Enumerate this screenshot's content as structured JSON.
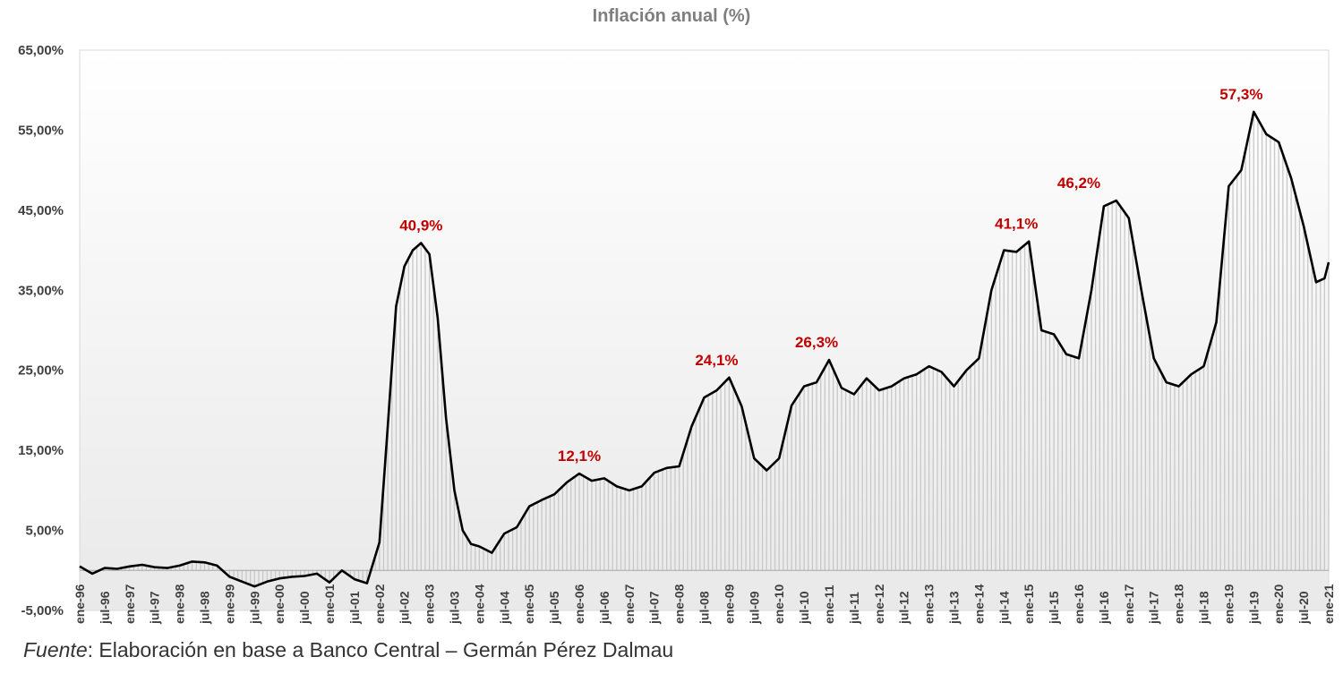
{
  "source": {
    "label": "Fuente",
    "text": ": Elaboración en base a Banco Central – Germán Pérez Dalmau"
  },
  "chart_data": {
    "type": "line",
    "title": "Inflación anual (%)",
    "xlabel": "",
    "ylabel": "",
    "ylim": [
      -5,
      65
    ],
    "yticks": [
      "-5,00%",
      "5,00%",
      "15,00%",
      "25,00%",
      "35,00%",
      "45,00%",
      "55,00%",
      "65,00%"
    ],
    "xticks": [
      "ene-96",
      "jul-96",
      "ene-97",
      "jul-97",
      "ene-98",
      "jul-98",
      "ene-99",
      "jul-99",
      "ene-00",
      "jul-00",
      "ene-01",
      "jul-01",
      "ene-02",
      "jul-02",
      "ene-03",
      "jul-03",
      "ene-04",
      "jul-04",
      "ene-05",
      "jul-05",
      "ene-06",
      "jul-06",
      "ene-07",
      "jul-07",
      "ene-08",
      "jul-08",
      "ene-09",
      "jul-09",
      "ene-10",
      "jul-10",
      "ene-11",
      "jul-11",
      "ene-12",
      "jul-12",
      "ene-13",
      "jul-13",
      "ene-14",
      "jul-14",
      "ene-15",
      "jul-15",
      "ene-16",
      "jul-16",
      "ene-17",
      "jul-17",
      "ene-18",
      "jul-18",
      "ene-19",
      "jul-19",
      "ene-20",
      "jul-20",
      "ene-21"
    ],
    "grid": false,
    "fill_under_line": true,
    "line_color": "#000000",
    "annotation_color": "#c00000",
    "series": [
      {
        "x": [
          "ene-96",
          "abr-96",
          "jul-96",
          "oct-96",
          "ene-97",
          "abr-97",
          "jul-97",
          "oct-97",
          "ene-98",
          "abr-98",
          "jul-98",
          "oct-98",
          "ene-99",
          "abr-99",
          "jul-99",
          "oct-99",
          "ene-00",
          "abr-00",
          "jul-00",
          "oct-00",
          "ene-01",
          "abr-01",
          "jul-01",
          "oct-01",
          "ene-02",
          "mar-02",
          "may-02",
          "jul-02",
          "sep-02",
          "nov-02",
          "ene-03",
          "mar-03",
          "may-03",
          "jul-03",
          "sep-03",
          "nov-03",
          "ene-04",
          "abr-04",
          "jul-04",
          "oct-04",
          "ene-05",
          "abr-05",
          "jul-05",
          "oct-05",
          "ene-06",
          "abr-06",
          "jul-06",
          "oct-06",
          "ene-07",
          "abr-07",
          "jul-07",
          "oct-07",
          "ene-08",
          "abr-08",
          "jul-08",
          "oct-08",
          "ene-09",
          "abr-09",
          "jul-09",
          "oct-09",
          "ene-10",
          "abr-10",
          "jul-10",
          "oct-10",
          "ene-11",
          "abr-11",
          "jul-11",
          "oct-11",
          "ene-12",
          "abr-12",
          "jul-12",
          "oct-12",
          "ene-13",
          "abr-13",
          "jul-13",
          "oct-13",
          "ene-14",
          "abr-14",
          "jul-14",
          "oct-14",
          "ene-15",
          "abr-15",
          "jul-15",
          "oct-15",
          "ene-16",
          "abr-16",
          "jul-16",
          "oct-16",
          "ene-17",
          "abr-17",
          "jul-17",
          "oct-17",
          "ene-18",
          "abr-18",
          "jul-18",
          "oct-18",
          "ene-19",
          "abr-19",
          "jul-19",
          "oct-19",
          "ene-20",
          "abr-20",
          "jul-20",
          "oct-20",
          "dic-20",
          "ene-21"
        ],
        "values": [
          0.5,
          -0.4,
          0.3,
          0.2,
          0.5,
          0.7,
          0.4,
          0.3,
          0.6,
          1.1,
          1.0,
          0.6,
          -0.8,
          -1.4,
          -2.0,
          -1.4,
          -1.0,
          -0.8,
          -0.7,
          -0.4,
          -1.5,
          0.0,
          -1.1,
          -1.6,
          3.5,
          18,
          33,
          38,
          40,
          40.9,
          39.5,
          31.5,
          19,
          10,
          5,
          3.3,
          3.0,
          2.2,
          4.6,
          5.4,
          8.0,
          8.8,
          9.5,
          11.0,
          12.1,
          11.2,
          11.5,
          10.5,
          10.0,
          10.5,
          12.2,
          12.8,
          13.0,
          18.0,
          21.6,
          22.5,
          24.1,
          20.5,
          14.0,
          12.5,
          14.0,
          20.6,
          23.0,
          23.5,
          26.3,
          22.8,
          22.0,
          24.0,
          22.5,
          23.0,
          24.0,
          24.5,
          25.5,
          24.8,
          23.0,
          25.0,
          26.5,
          35,
          40,
          39.8,
          41.1,
          30.0,
          29.5,
          27.0,
          26.5,
          35,
          45.5,
          46.2,
          44,
          35,
          26.5,
          23.5,
          23.0,
          24.5,
          25.5,
          31,
          48,
          50,
          57.3,
          54.5,
          53.5,
          49,
          43,
          36,
          36.5,
          38.5
        ]
      }
    ],
    "annotations": [
      {
        "label": "40,9%",
        "x": "nov-02",
        "y": 40.9
      },
      {
        "label": "12,1%",
        "x": "ene-06",
        "y": 12.1
      },
      {
        "label": "24,1%",
        "x": "oct-08",
        "y": 24.1
      },
      {
        "label": "26,3%",
        "x": "oct-10",
        "y": 26.3
      },
      {
        "label": "41,1%",
        "x": "oct-14",
        "y": 41.1
      },
      {
        "label": "46,2%",
        "x": "ene-16",
        "y": 46.2
      },
      {
        "label": "57,3%",
        "x": "abr-19",
        "y": 57.3
      }
    ]
  }
}
